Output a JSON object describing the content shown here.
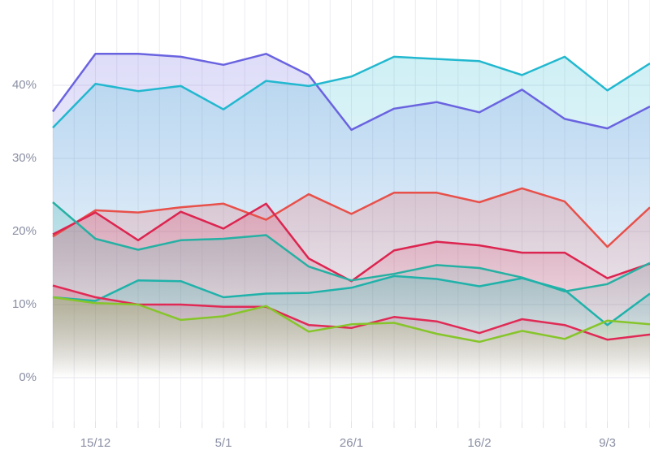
{
  "chart_data": {
    "type": "line",
    "categories": [
      null,
      "15/12",
      null,
      null,
      "5/1",
      null,
      null,
      "26/1",
      null,
      null,
      "16/2",
      null,
      null,
      "9/3",
      null
    ],
    "series": [
      {
        "color": "#6a63e0",
        "values": [
          36.4,
          44.3,
          44.3,
          43.9,
          42.8,
          44.3,
          41.4,
          33.9,
          36.8,
          37.7,
          36.3,
          39.4,
          35.4,
          34.1,
          37.1
        ]
      },
      {
        "color": "#22b8cf",
        "values": [
          34.2,
          40.2,
          39.2,
          39.9,
          36.7,
          40.6,
          39.9,
          41.2,
          43.9,
          43.6,
          43.3,
          41.4,
          43.9,
          39.3,
          43.0
        ]
      },
      {
        "color": "#e8504a",
        "values": [
          19.3,
          22.9,
          22.6,
          23.3,
          23.8,
          21.6,
          25.1,
          22.4,
          25.3,
          25.3,
          24.0,
          25.9,
          24.1,
          17.9,
          23.3
        ]
      },
      {
        "color": "#dc2550",
        "values": [
          19.6,
          22.6,
          18.8,
          22.7,
          20.4,
          23.8,
          16.3,
          13.2,
          17.4,
          18.6,
          18.1,
          17.1,
          17.1,
          13.6,
          15.6
        ]
      },
      {
        "color": "#26b0a3",
        "values": [
          24.0,
          19.0,
          17.5,
          18.8,
          19.0,
          19.5,
          15.2,
          13.3,
          14.2,
          15.4,
          15.0,
          13.7,
          11.8,
          12.8,
          15.7
        ]
      },
      {
        "color": "#1fb2aa",
        "values": [
          11.0,
          10.5,
          13.3,
          13.2,
          11.0,
          11.5,
          11.6,
          12.3,
          13.9,
          13.5,
          12.5,
          13.6,
          12.0,
          7.2,
          11.5
        ]
      },
      {
        "color": "#e02a55",
        "values": [
          12.6,
          11.0,
          10.0,
          10.0,
          9.7,
          9.7,
          7.2,
          6.8,
          8.3,
          7.7,
          6.1,
          8.0,
          7.2,
          5.2,
          5.9
        ]
      },
      {
        "color": "#86c52a",
        "values": [
          11.0,
          10.2,
          10.0,
          7.9,
          8.4,
          9.8,
          6.3,
          7.3,
          7.5,
          6.0,
          4.9,
          6.4,
          5.3,
          7.8,
          7.3
        ]
      }
    ],
    "ylim": [
      -6,
      50
    ],
    "yticks": [
      {
        "value": 0,
        "label": "0%"
      },
      {
        "value": 10,
        "label": "10%"
      },
      {
        "value": 20,
        "label": "20%"
      },
      {
        "value": 30,
        "label": "30%"
      },
      {
        "value": 40,
        "label": "40%"
      }
    ],
    "grid": true
  }
}
